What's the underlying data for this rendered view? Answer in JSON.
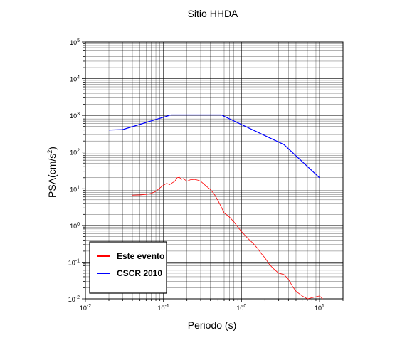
{
  "chart_data": {
    "type": "line",
    "title": "Sitio HHDA",
    "xlabel": "Periodo (s)",
    "ylabel_base": "PSA(cm/s",
    "ylabel_exp": "2",
    "ylabel_close": ")",
    "x_scale": "log",
    "y_scale": "log",
    "xlim": [
      0.01,
      20
    ],
    "ylim": [
      0.01,
      100000
    ],
    "grid": true,
    "legend_position": "bottom-left",
    "x_ticks": [
      {
        "base": "10",
        "exp": "-2",
        "value": 0.01
      },
      {
        "base": "10",
        "exp": "-1",
        "value": 0.1
      },
      {
        "base": "10",
        "exp": "0",
        "value": 1
      },
      {
        "base": "10",
        "exp": "1",
        "value": 10
      }
    ],
    "y_ticks": [
      {
        "base": "10",
        "exp": "-2",
        "value": 0.01
      },
      {
        "base": "10",
        "exp": "-1",
        "value": 0.1
      },
      {
        "base": "10",
        "exp": "0",
        "value": 1
      },
      {
        "base": "10",
        "exp": "1",
        "value": 10
      },
      {
        "base": "10",
        "exp": "2",
        "value": 100
      },
      {
        "base": "10",
        "exp": "3",
        "value": 1000
      },
      {
        "base": "10",
        "exp": "4",
        "value": 10000
      },
      {
        "base": "10",
        "exp": "5",
        "value": 100000
      }
    ],
    "series": [
      {
        "name": "Este evento",
        "color": "#ff0000",
        "points": [
          [
            0.04,
            6.7
          ],
          [
            0.05,
            6.8
          ],
          [
            0.06,
            7.0
          ],
          [
            0.07,
            7.5
          ],
          [
            0.08,
            8.5
          ],
          [
            0.09,
            10.5
          ],
          [
            0.1,
            12.5
          ],
          [
            0.11,
            14
          ],
          [
            0.12,
            13
          ],
          [
            0.13,
            14.5
          ],
          [
            0.14,
            16
          ],
          [
            0.15,
            20
          ],
          [
            0.16,
            20.5
          ],
          [
            0.17,
            18
          ],
          [
            0.18,
            19
          ],
          [
            0.2,
            16
          ],
          [
            0.22,
            17.5
          ],
          [
            0.25,
            18
          ],
          [
            0.28,
            17
          ],
          [
            0.3,
            16
          ],
          [
            0.35,
            12
          ],
          [
            0.4,
            9.5
          ],
          [
            0.45,
            7
          ],
          [
            0.5,
            4.8
          ],
          [
            0.55,
            3.2
          ],
          [
            0.6,
            2.2
          ],
          [
            0.7,
            1.7
          ],
          [
            0.8,
            1.25
          ],
          [
            0.9,
            0.9
          ],
          [
            1.0,
            0.68
          ],
          [
            1.2,
            0.45
          ],
          [
            1.4,
            0.33
          ],
          [
            1.6,
            0.24
          ],
          [
            1.8,
            0.17
          ],
          [
            2.0,
            0.13
          ],
          [
            2.3,
            0.085
          ],
          [
            2.6,
            0.065
          ],
          [
            3.0,
            0.05
          ],
          [
            3.5,
            0.046
          ],
          [
            4.0,
            0.034
          ],
          [
            4.5,
            0.022
          ],
          [
            5.0,
            0.016
          ],
          [
            6.0,
            0.012
          ],
          [
            7.0,
            0.01
          ],
          [
            8.0,
            0.009
          ],
          [
            9.0,
            0.009
          ],
          [
            10.0,
            0.012
          ],
          [
            11.0,
            0.01
          ]
        ]
      },
      {
        "name": "CSCR 2010",
        "color": "#0000ff",
        "points": [
          [
            0.02,
            400
          ],
          [
            0.03,
            410
          ],
          [
            0.125,
            1030
          ],
          [
            0.55,
            1030
          ],
          [
            3.5,
            160
          ],
          [
            10.0,
            20
          ]
        ]
      }
    ]
  }
}
